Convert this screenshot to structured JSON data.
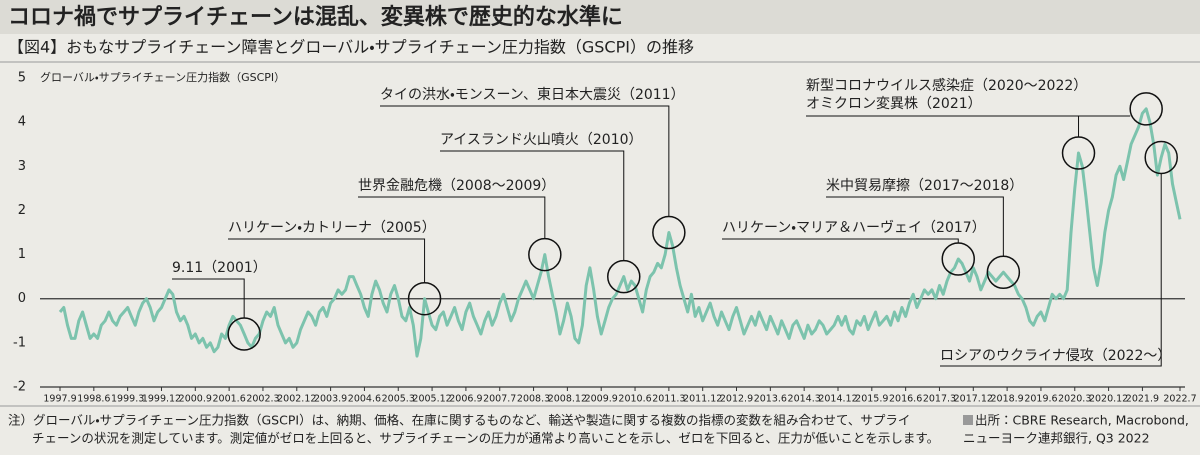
{
  "chart_data": {
    "type": "line",
    "title": "コロナ禍でサプライチェーンは混乱、変異株で歴史的な水準に",
    "subtitle": "【図4】おもなサプライチェーン障害とグローバル・サプライチェーン圧力指数（GSCPI）の推移",
    "y_label": "グローバル・サプライチェーン圧力指数（GSCPI）",
    "categories": [
      "1997.9",
      null,
      null,
      null,
      null,
      null,
      null,
      null,
      null,
      "1998.6",
      null,
      null,
      null,
      null,
      null,
      null,
      null,
      null,
      "1999.3",
      null,
      null,
      null,
      null,
      null,
      null,
      null,
      null,
      "1999.12",
      null,
      null,
      null,
      null,
      null,
      null,
      null,
      null,
      "2000.9",
      null,
      null,
      null,
      null,
      null,
      null,
      null,
      null,
      "2001.6",
      null,
      null,
      null,
      null,
      null,
      null,
      null,
      null,
      "2002.3",
      null,
      null,
      null,
      null,
      null,
      null,
      null,
      null,
      "2002.12",
      null,
      null,
      null,
      null,
      null,
      null,
      null,
      null,
      "2003.9",
      null,
      null,
      null,
      null,
      null,
      null,
      null,
      null,
      "2004.6",
      null,
      null,
      null,
      null,
      null,
      null,
      null,
      null,
      "2005.3",
      null,
      null,
      null,
      null,
      null,
      null,
      null,
      null,
      "2005.12",
      null,
      null,
      null,
      null,
      null,
      null,
      null,
      null,
      "2006.9",
      null,
      null,
      null,
      null,
      null,
      null,
      null,
      null,
      "2007.7",
      null,
      null,
      null,
      null,
      null,
      null,
      null,
      null,
      "2008.3",
      null,
      null,
      null,
      null,
      null,
      null,
      null,
      null,
      "2008.12",
      null,
      null,
      null,
      null,
      null,
      null,
      null,
      null,
      "2009.9",
      null,
      null,
      null,
      null,
      null,
      null,
      null,
      null,
      "2010.6",
      null,
      null,
      null,
      null,
      null,
      null,
      null,
      null,
      "2011.3",
      null,
      null,
      null,
      null,
      null,
      null,
      null,
      null,
      "2011.12",
      null,
      null,
      null,
      null,
      null,
      null,
      null,
      null,
      "2012.9",
      null,
      null,
      null,
      null,
      null,
      null,
      null,
      null,
      "2013.6",
      null,
      null,
      null,
      null,
      null,
      null,
      null,
      null,
      "2014.3",
      null,
      null,
      null,
      null,
      null,
      null,
      null,
      null,
      "2014.12",
      null,
      null,
      null,
      null,
      null,
      null,
      null,
      null,
      "2015.9",
      null,
      null,
      null,
      null,
      null,
      null,
      null,
      null,
      "2016.6",
      null,
      null,
      null,
      null,
      null,
      null,
      null,
      null,
      "2017.3",
      null,
      null,
      null,
      null,
      null,
      null,
      null,
      null,
      "2017.12",
      null,
      null,
      null,
      null,
      null,
      null,
      null,
      null,
      "2018.9",
      null,
      null,
      null,
      null,
      null,
      null,
      null,
      null,
      "2019.6",
      null,
      null,
      null,
      null,
      null,
      null,
      null,
      null,
      "2020.3",
      null,
      null,
      null,
      null,
      null,
      null,
      null,
      null,
      "2020.12",
      null,
      null,
      null,
      null,
      null,
      null,
      null,
      null,
      "2021.9",
      null,
      null,
      null,
      null,
      null,
      null,
      null,
      null,
      null,
      "2022.7"
    ],
    "series": [
      {
        "color": "#7cc3ad",
        "values": [
          -0.3,
          -0.2,
          -0.6,
          -0.9,
          -0.9,
          -0.5,
          -0.3,
          -0.6,
          -0.9,
          -0.8,
          -0.9,
          -0.6,
          -0.5,
          -0.3,
          -0.5,
          -0.6,
          -0.4,
          -0.3,
          -0.2,
          -0.4,
          -0.6,
          -0.3,
          -0.1,
          0.0,
          -0.2,
          -0.5,
          -0.3,
          -0.2,
          0.0,
          0.2,
          0.1,
          -0.3,
          -0.5,
          -0.4,
          -0.6,
          -0.9,
          -0.8,
          -1.0,
          -0.9,
          -1.1,
          -1.0,
          -1.2,
          -1.1,
          -0.8,
          -0.9,
          -0.6,
          -0.4,
          -0.5,
          -0.6,
          -0.8,
          -1.0,
          -1.1,
          -0.9,
          -0.8,
          -0.5,
          -0.3,
          -0.4,
          -0.2,
          -0.6,
          -0.8,
          -1.0,
          -0.9,
          -1.1,
          -1.0,
          -0.7,
          -0.5,
          -0.3,
          -0.4,
          -0.6,
          -0.3,
          -0.2,
          -0.4,
          -0.1,
          0.0,
          0.2,
          0.1,
          0.2,
          0.5,
          0.5,
          0.3,
          0.1,
          -0.2,
          -0.4,
          0.1,
          0.4,
          0.2,
          -0.1,
          -0.3,
          0.1,
          0.3,
          0.0,
          -0.4,
          -0.5,
          -0.2,
          -0.6,
          -1.3,
          -0.9,
          0.0,
          -0.3,
          -0.6,
          -0.7,
          -0.4,
          -0.3,
          -0.6,
          -0.4,
          -0.2,
          -0.5,
          -0.7,
          -0.3,
          -0.1,
          -0.4,
          -0.6,
          -0.8,
          -0.5,
          -0.3,
          -0.6,
          -0.4,
          -0.1,
          0.1,
          -0.2,
          -0.5,
          -0.3,
          0.0,
          0.2,
          0.4,
          0.2,
          0.0,
          0.3,
          0.6,
          1.0,
          0.5,
          0.1,
          -0.3,
          -0.8,
          -0.5,
          -0.1,
          -0.4,
          -0.9,
          -1.0,
          -0.6,
          0.3,
          0.7,
          0.2,
          -0.4,
          -0.8,
          -0.5,
          -0.2,
          0.0,
          0.1,
          0.3,
          0.5,
          0.2,
          0.4,
          0.3,
          0.0,
          -0.3,
          0.2,
          0.5,
          0.6,
          0.8,
          0.7,
          1.0,
          1.5,
          1.2,
          0.7,
          0.3,
          0.0,
          -0.3,
          0.1,
          -0.4,
          -0.2,
          -0.5,
          -0.3,
          -0.1,
          -0.4,
          -0.6,
          -0.3,
          -0.5,
          -0.7,
          -0.4,
          -0.2,
          -0.5,
          -0.8,
          -0.6,
          -0.4,
          -0.6,
          -0.3,
          -0.5,
          -0.7,
          -0.4,
          -0.6,
          -0.8,
          -0.5,
          -0.7,
          -0.9,
          -0.6,
          -0.5,
          -0.7,
          -0.9,
          -0.6,
          -0.8,
          -0.7,
          -0.5,
          -0.6,
          -0.8,
          -0.7,
          -0.6,
          -0.4,
          -0.6,
          -0.4,
          -0.7,
          -0.8,
          -0.5,
          -0.6,
          -0.4,
          -0.7,
          -0.5,
          -0.3,
          -0.6,
          -0.5,
          -0.4,
          -0.6,
          -0.3,
          -0.5,
          -0.2,
          -0.4,
          -0.1,
          0.1,
          -0.2,
          0.0,
          0.2,
          0.1,
          0.2,
          0.0,
          0.3,
          0.1,
          0.4,
          0.6,
          0.7,
          0.9,
          0.8,
          0.6,
          0.4,
          0.7,
          0.5,
          0.2,
          0.4,
          0.6,
          0.5,
          0.4,
          0.5,
          0.6,
          0.5,
          0.4,
          0.3,
          0.1,
          0.0,
          -0.2,
          -0.5,
          -0.6,
          -0.4,
          -0.3,
          -0.5,
          -0.2,
          0.1,
          0.0,
          0.1,
          0.0,
          0.2,
          1.5,
          2.5,
          3.3,
          3.0,
          2.3,
          1.5,
          0.7,
          0.3,
          0.8,
          1.5,
          2.0,
          2.3,
          2.8,
          3.0,
          2.7,
          3.1,
          3.5,
          3.7,
          3.9,
          4.2,
          4.3,
          4.0,
          3.5,
          2.8,
          3.2,
          3.5,
          3.3,
          2.6,
          2.2,
          1.8
        ]
      }
    ],
    "ylim": [
      -2,
      5
    ],
    "yticks": [
      -2,
      -1,
      0,
      1,
      2,
      3,
      4,
      5
    ],
    "annotations": [
      "9.11（2001）",
      "ハリケーン・カトリーナ（2005）",
      "世界金融危機（2008～2009）",
      "アイスランド火山噴火（2010）",
      "タイの洪水・モンスーン、東日本大震災（2011）",
      "ハリケーン・マリア＆ハーヴェイ（2017）",
      "米中貿易摩擦（2017～2018）",
      "新型コロナウイルス感染症（2020～2022）",
      "オミクロン変異株（2021）",
      "ロシアのウクライナ侵攻（2022～）"
    ],
    "note": [
      "注）グローバル・サプライチェーン圧力指数（GSCPI）は、納期、価格、在庫に関するものなど、輸送や製造に関する複数の指標の変数を組み合わせて、サプライ",
      "チェーンの状況を測定しています。測定値がゼロを上回ると、サプライチェーンの圧力が通常より高いことを示し、ゼロを下回ると、圧力が低いことを示します。"
    ],
    "source": [
      "出所：CBRE Research, Macrobond,",
      "ニューヨーク連邦銀行, Q3 2022"
    ]
  }
}
